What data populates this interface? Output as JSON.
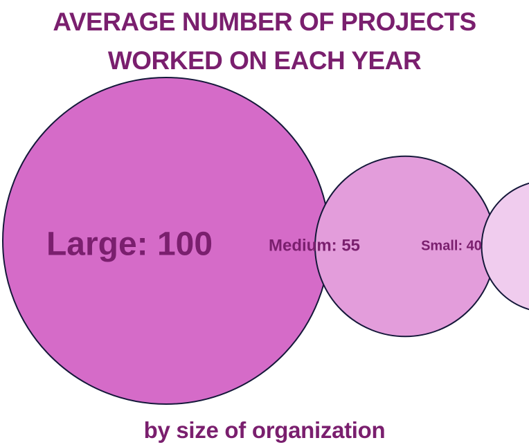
{
  "chart_data": {
    "type": "bubble",
    "title_lines": [
      "AVERAGE NUMBER OF PROJECTS",
      "WORKED ON EACH YEAR"
    ],
    "subtitle": "by size of organization",
    "series": [
      {
        "category": "Large",
        "value": 100,
        "label": "Large: 100",
        "color": "#d56bc8"
      },
      {
        "category": "Medium",
        "value": 55,
        "label": "Medium: 55",
        "color": "#e39ddb"
      },
      {
        "category": "Small",
        "value": 40,
        "label": "Small: 40",
        "color": "#f0ccee"
      }
    ],
    "colors": {
      "text": "#7a1f6e",
      "outline": "#15183a"
    }
  }
}
